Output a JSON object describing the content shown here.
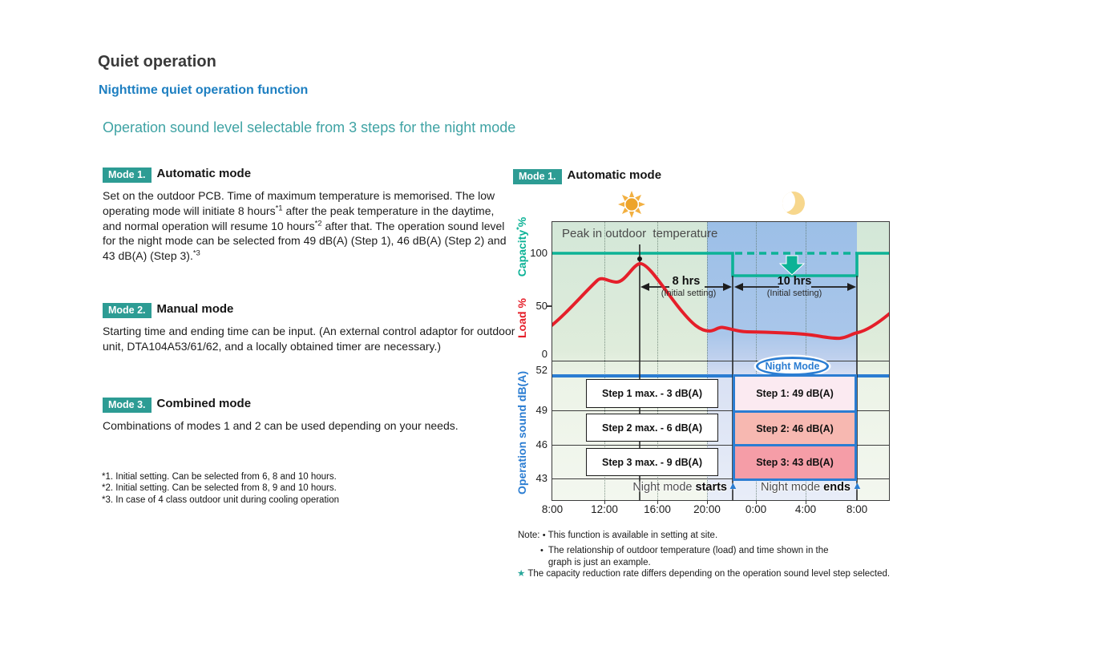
{
  "page": {
    "title": "Quiet operation",
    "subtitle": "Nighttime quiet operation function",
    "section_heading": "Operation sound level selectable from 3 steps for the night mode"
  },
  "modes": [
    {
      "badge": "Mode 1.",
      "name": "Automatic mode",
      "body": [
        {
          "t": "Set on the outdoor PCB. Time of maximum temperature is memorised. The low operating mode will initiate  8 hours"
        },
        {
          "t": "*1",
          "sup": true
        },
        {
          "t": " after the peak temperature in the daytime, and normal operation will resume 10 hours"
        },
        {
          "t": "*2",
          "sup": true
        },
        {
          "t": " after that. The operation sound level for the night mode can be selected from 49 dB(A) (Step 1), 46 dB(A) (Step 2) and 43 dB(A) (Step 3)."
        },
        {
          "t": "*3",
          "sup": true
        }
      ]
    },
    {
      "badge": "Mode 2.",
      "name": "Manual mode",
      "body": [
        {
          "t": "Starting time and ending time can be input. (An external control adaptor for outdoor unit, DTA104A53/61/62, and a locally obtained timer are necessary.)"
        }
      ]
    },
    {
      "badge": "Mode 3.",
      "name": "Combined mode",
      "body": [
        {
          "t": "Combinations of modes 1 and 2 can be used depending on your needs."
        }
      ]
    }
  ],
  "footnotes": [
    "*1. Initial setting. Can be selected from 6, 8 and 10 hours.",
    "*2. Initial setting. Can be selected from 8, 9 and 10 hours.",
    "*3. In case of 4 class outdoor unit during cooling operation"
  ],
  "diagram": {
    "badge": "Mode 1.",
    "title": "Automatic mode",
    "peak_label": "Peak in outdoor  temperature",
    "interval_8h": {
      "label": "8 hrs",
      "sub": "(Initial setting)"
    },
    "interval_10h": {
      "label": "10 hrs",
      "sub": "(Initial setting)"
    },
    "night_mode_badge": "Night Mode",
    "y_axis": {
      "capacity_label": [
        {
          "t": "Capacity"
        },
        {
          "t": "*",
          "sup": true
        },
        {
          "t": "%"
        }
      ],
      "load_label": "Load %",
      "sound_label": "Operation sound dB(A)",
      "capacity_ticks": [
        "100",
        "50",
        "0"
      ],
      "sound_ticks": [
        "52",
        "49",
        "46",
        "43"
      ]
    },
    "x_ticks": [
      "8:00",
      "12:00",
      "16:00",
      "20:00",
      "0:00",
      "4:00",
      "8:00"
    ],
    "day_steps": [
      "Step 1 max. - 3 dB(A)",
      "Step 2 max. - 6 dB(A)",
      "Step 3 max. - 9 dB(A)"
    ],
    "night_steps": [
      "Step 1: 49 dB(A)",
      "Step 2: 46 dB(A)",
      "Step 3: 43 dB(A)"
    ],
    "night_starts": [
      {
        "t": "Night mode "
      },
      {
        "t": "starts",
        "b": true
      }
    ],
    "night_ends": [
      {
        "t": "Night mode "
      },
      {
        "t": "ends",
        "b": true
      }
    ],
    "start_arrow": "▲",
    "end_arrow": "▲"
  },
  "notes": {
    "label": "Note:",
    "bullet": "•",
    "items": [
      "This function is available in setting at site.",
      "The relationship of outdoor temperature (load) and time shown in the graph is just an example."
    ],
    "star": "★",
    "star_note": "The capacity reduction rate differs depending on the operation sound level step selected."
  },
  "colors": {
    "capacity_teal": "#0cb296",
    "badge_teal": "#2d9c94",
    "heading_teal": "#3fa3a4",
    "subtitle_blue": "#1d7fc1",
    "load_red": "#e51f2a",
    "sound_blue": "#2b7dd2",
    "night_band_blue": "#9cbfe7",
    "day_bg_green": "#d3e7d8",
    "step1_pink": "#fbeaf1",
    "step2_pink": "#f7b8b1",
    "step3_pink": "#f59da7",
    "sun_orange": "#f0ad35",
    "moon_yellow": "#f7d78d"
  },
  "chart_data": {
    "type": "line",
    "title": "Mode 1. Automatic mode — nighttime quiet operation",
    "x_ticks": [
      "8:00",
      "12:00",
      "16:00",
      "20:00",
      "0:00",
      "4:00",
      "8:00"
    ],
    "night_window": {
      "start": "22:00",
      "end": "8:00",
      "band_shaded": "20:00–8:00"
    },
    "y_axes": [
      {
        "label": "Capacity %",
        "color": "#0cb296",
        "ticks": [
          100,
          50,
          0
        ]
      },
      {
        "label": "Load %",
        "color": "#e51f2a",
        "range": [
          0,
          100
        ]
      },
      {
        "label": "Operation sound dB(A)",
        "color": "#2b7dd2",
        "ticks": [
          52,
          49,
          46,
          43
        ]
      }
    ],
    "series": [
      {
        "name": "Capacity %",
        "color": "#0cb296",
        "style": "step",
        "points": [
          [
            "8:00",
            100
          ],
          [
            "22:00",
            100
          ],
          [
            "22:00",
            78
          ],
          [
            "8:00",
            78
          ],
          [
            "8:00",
            100
          ]
        ],
        "note": "dashed 100% reference line shown across the night window; capacity reduced ~22% from 22:00 to 8:00"
      },
      {
        "name": "Load %",
        "color": "#e51f2a",
        "style": "smooth",
        "points": [
          [
            "8:00",
            34
          ],
          [
            "10:00",
            58
          ],
          [
            "11:45",
            76
          ],
          [
            "12:45",
            73
          ],
          [
            "14:40",
            90
          ],
          [
            "17:00",
            44
          ],
          [
            "20:00",
            28
          ],
          [
            "21:00",
            31
          ],
          [
            "22:00",
            27
          ],
          [
            "0:00",
            27
          ],
          [
            "2:00",
            26
          ],
          [
            "4:00",
            25
          ],
          [
            "6:00",
            21
          ],
          [
            "8:00",
            27
          ]
        ]
      },
      {
        "name": "Operation sound dB(A) (daytime max)",
        "color": "#2b7dd2",
        "style": "step",
        "points": [
          [
            "8:00",
            52
          ],
          [
            "22:00",
            52
          ]
        ],
        "night_options": [
          {
            "step": 1,
            "value": 49
          },
          {
            "step": 2,
            "value": 46
          },
          {
            "step": 3,
            "value": 43
          }
        ]
      }
    ],
    "annotations": [
      "Peak in outdoor  temperature (≈14:40, load ≈90%)",
      "8 hrs (Initial setting) — from peak to night mode start",
      "10 hrs (Initial setting) — from night mode start to end",
      "Night Mode",
      "Night mode starts (22:00)",
      "Night mode ends (8:00)"
    ],
    "legend_position": "none",
    "grid": "dotted vertical at 4-hour ticks"
  }
}
